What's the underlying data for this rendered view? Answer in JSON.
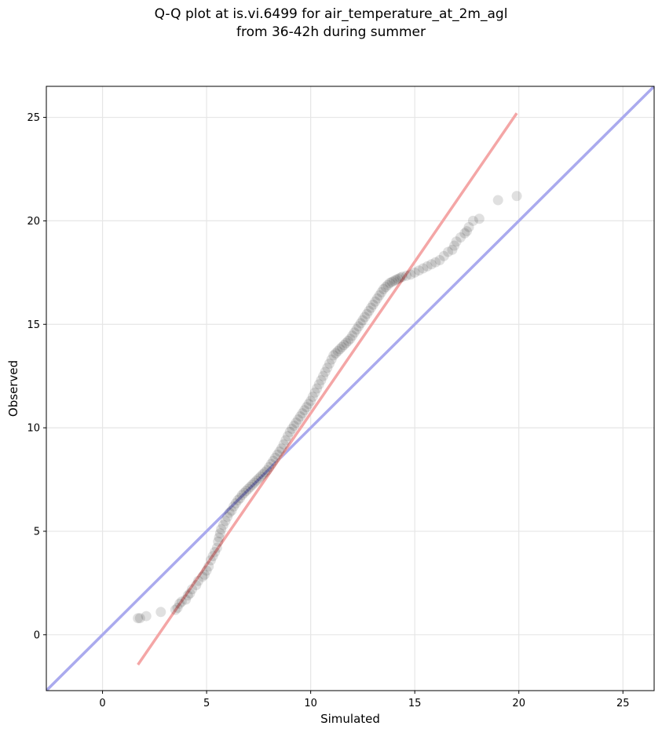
{
  "chart_data": {
    "type": "scatter",
    "title": "Q-Q plot at is.vi.6499 for air_temperature_at_2m_agl",
    "subtitle": "from 36-42h during summer",
    "xlabel": "Simulated",
    "ylabel": "Observed",
    "xlim": [
      -2.7,
      26.5
    ],
    "ylim": [
      -2.7,
      26.5
    ],
    "xticks": [
      0,
      5,
      10,
      15,
      20,
      25
    ],
    "yticks": [
      0,
      5,
      10,
      15,
      20,
      25
    ],
    "grid": true,
    "identity_line": {
      "x": [
        -2.7,
        26.5
      ],
      "y": [
        -2.7,
        26.5
      ],
      "color": "#aaaaee"
    },
    "fit_line": {
      "x": [
        1.7,
        19.9
      ],
      "y": [
        -1.45,
        25.2
      ],
      "color": "#f4a6a6"
    },
    "points": {
      "color": "#000000",
      "x": [
        1.7,
        1.8,
        2.1,
        2.8,
        3.5,
        3.6,
        3.7,
        3.8,
        4.0,
        4.1,
        4.2,
        4.3,
        4.5,
        4.6,
        4.8,
        4.9,
        5.0,
        5.1,
        5.2,
        5.3,
        5.4,
        5.5,
        5.55,
        5.6,
        5.65,
        5.7,
        5.8,
        5.9,
        6.0,
        6.1,
        6.2,
        6.3,
        6.4,
        6.5,
        6.6,
        6.7,
        6.8,
        6.9,
        7.0,
        7.1,
        7.2,
        7.3,
        7.4,
        7.5,
        7.6,
        7.7,
        7.8,
        7.9,
        8.0,
        8.1,
        8.2,
        8.3,
        8.4,
        8.5,
        8.6,
        8.7,
        8.8,
        8.9,
        9.0,
        9.1,
        9.2,
        9.3,
        9.4,
        9.5,
        9.6,
        9.7,
        9.8,
        9.9,
        10.0,
        10.1,
        10.2,
        10.3,
        10.4,
        10.5,
        10.6,
        10.7,
        10.8,
        10.9,
        11.0,
        11.1,
        11.2,
        11.3,
        11.4,
        11.5,
        11.6,
        11.7,
        11.8,
        11.9,
        12.0,
        12.1,
        12.2,
        12.3,
        12.4,
        12.5,
        12.6,
        12.7,
        12.8,
        12.9,
        13.0,
        13.1,
        13.2,
        13.3,
        13.4,
        13.5,
        13.6,
        13.7,
        13.8,
        13.9,
        14.0,
        14.1,
        14.2,
        14.3,
        14.4,
        14.6,
        14.8,
        15.0,
        15.2,
        15.4,
        15.6,
        15.8,
        16.0,
        16.2,
        16.4,
        16.6,
        16.8,
        16.9,
        17.0,
        17.2,
        17.4,
        17.5,
        17.6,
        17.8,
        18.1,
        19.0,
        19.9
      ],
      "y": [
        0.8,
        0.8,
        0.9,
        1.1,
        1.2,
        1.3,
        1.5,
        1.6,
        1.7,
        1.9,
        2.0,
        2.2,
        2.4,
        2.6,
        2.8,
        2.9,
        3.1,
        3.3,
        3.6,
        3.8,
        4.0,
        4.2,
        4.5,
        4.7,
        4.9,
        5.1,
        5.3,
        5.5,
        5.7,
        5.9,
        6.0,
        6.2,
        6.35,
        6.5,
        6.6,
        6.75,
        6.85,
        6.95,
        7.05,
        7.15,
        7.25,
        7.35,
        7.45,
        7.55,
        7.65,
        7.75,
        7.85,
        7.95,
        8.1,
        8.25,
        8.4,
        8.55,
        8.7,
        8.85,
        9.0,
        9.2,
        9.4,
        9.6,
        9.8,
        9.95,
        10.1,
        10.25,
        10.4,
        10.55,
        10.7,
        10.85,
        11.0,
        11.15,
        11.3,
        11.5,
        11.7,
        11.9,
        12.1,
        12.3,
        12.5,
        12.7,
        12.9,
        13.1,
        13.3,
        13.5,
        13.6,
        13.7,
        13.8,
        13.9,
        14.0,
        14.1,
        14.2,
        14.3,
        14.45,
        14.6,
        14.75,
        14.9,
        15.05,
        15.2,
        15.35,
        15.5,
        15.65,
        15.8,
        15.95,
        16.1,
        16.25,
        16.4,
        16.55,
        16.7,
        16.8,
        16.9,
        17.0,
        17.05,
        17.1,
        17.15,
        17.2,
        17.25,
        17.3,
        17.35,
        17.4,
        17.5,
        17.6,
        17.7,
        17.8,
        17.9,
        18.0,
        18.1,
        18.3,
        18.5,
        18.6,
        18.8,
        19.0,
        19.2,
        19.4,
        19.5,
        19.7,
        20.0,
        20.1,
        21.0,
        21.2
      ]
    }
  }
}
